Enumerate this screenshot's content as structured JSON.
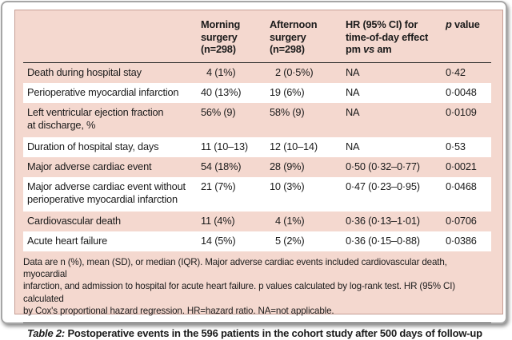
{
  "colors": {
    "pink": "#f4d8cf",
    "block-border": "#c69d94",
    "card-border": "#a6a6a6",
    "rule-dark": "#2b2b2b",
    "rule-mid": "#4d4d4d",
    "text": "#1b1b1b"
  },
  "table": {
    "header": {
      "morning": "Morning\nsurgery\n(n=298)",
      "afternoon": "Afternoon\nsurgery\n(n=298)",
      "hr_lines": "HR (95% CI) for\ntime-of-day effect",
      "hr_pm": "pm ",
      "hr_vs": "vs",
      "hr_am": " am",
      "p_italic": "p",
      "p_rest": " value"
    },
    "rows": [
      {
        "label": "Death during hospital stay",
        "morning": "4 (1%)",
        "afternoon": "2 (0·5%)",
        "hr": "NA",
        "p": "0·42"
      },
      {
        "label": "Perioperative myocardial infarction",
        "morning": "40 (13%)",
        "afternoon": "19 (6%)",
        "hr": "NA",
        "p": "0·0048"
      },
      {
        "label": "Left ventricular ejection fraction\nat discharge, %",
        "morning": "56% (9)",
        "afternoon": "58% (9)",
        "hr": "NA",
        "p": "0·0109"
      },
      {
        "label": "Duration of hospital stay, days",
        "morning": "11 (10–13)",
        "afternoon": "12 (10–14)",
        "hr": "NA",
        "p": "0·53"
      },
      {
        "label": "Major adverse cardiac event",
        "morning": "54 (18%)",
        "afternoon": "28 (9%)",
        "hr": "0·50 (0·32–0·77)",
        "p": "0·0021"
      },
      {
        "label": "Major adverse cardiac event without\nperioperative myocardial infarction",
        "morning": "21 (7%)",
        "afternoon": "10 (3%)",
        "hr": "0·47 (0·23–0·95)",
        "p": "0·0468"
      },
      {
        "label": "Cardiovascular death",
        "morning": "11 (4%)",
        "afternoon": "4 (1%)",
        "hr": "0·36 (0·13–1·01)",
        "p": "0·0706"
      },
      {
        "label": "Acute heart failure",
        "morning": "14 (5%)",
        "afternoon": "5 (2%)",
        "hr": "0·36 (0·15–0·88)",
        "p": "0·0386"
      }
    ]
  },
  "footnote": "Data are n (%), mean (SD), or median (IQR). Major adverse cardiac events included cardiovascular death, myocardial\ninfarction, and admission to hospital for acute heart failure. p values calculated by log-rank test. HR (95% CI) calculated\nby Cox's proportional hazard regression. HR=hazard ratio. NA=not applicable.",
  "caption": {
    "prefix": "Table 2:",
    "text": " Postoperative events in the 596 patients in the cohort study after 500 days of follow-up"
  }
}
